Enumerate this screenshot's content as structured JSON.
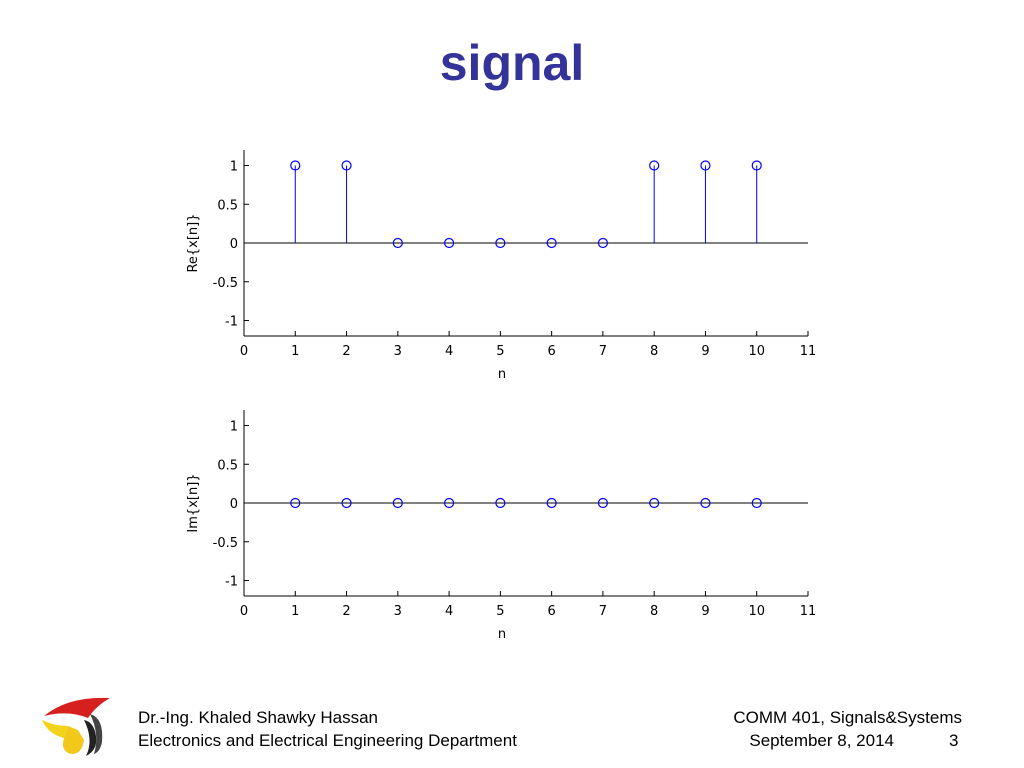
{
  "slide": {
    "title": "signal",
    "footer": {
      "author": "Dr.-Ing. Khaled Shawky Hassan",
      "department": "Electronics and Electrical Engineering Department",
      "course": "COMM 401, Signals&Systems",
      "date": "September 8, 2014",
      "page": "3"
    },
    "colors": {
      "title": "#333399",
      "stem": "#0000ff",
      "axis": "#000000"
    },
    "logo_icon": "university-logo-icon"
  },
  "chart_data": [
    {
      "type": "stem",
      "xlabel": "n",
      "ylabel": "Re{x[n]}",
      "xlim": [
        0,
        11
      ],
      "ylim": [
        -1.2,
        1.2
      ],
      "xticks": [
        "0",
        "1",
        "2",
        "3",
        "4",
        "5",
        "6",
        "7",
        "8",
        "9",
        "10",
        "11"
      ],
      "yticks": [
        "-1",
        "-0.5",
        "0",
        "0.5",
        "1"
      ],
      "x": [
        1,
        2,
        3,
        4,
        5,
        6,
        7,
        8,
        9,
        10
      ],
      "y": [
        1,
        1,
        0,
        0,
        0,
        0,
        0,
        1,
        1,
        1
      ]
    },
    {
      "type": "stem",
      "xlabel": "n",
      "ylabel": "Im{x[n]}",
      "xlim": [
        0,
        11
      ],
      "ylim": [
        -1.2,
        1.2
      ],
      "xticks": [
        "0",
        "1",
        "2",
        "3",
        "4",
        "5",
        "6",
        "7",
        "8",
        "9",
        "10",
        "11"
      ],
      "yticks": [
        "-1",
        "-0.5",
        "0",
        "0.5",
        "1"
      ],
      "x": [
        1,
        2,
        3,
        4,
        5,
        6,
        7,
        8,
        9,
        10
      ],
      "y": [
        0,
        0,
        0,
        0,
        0,
        0,
        0,
        0,
        0,
        0
      ]
    }
  ]
}
